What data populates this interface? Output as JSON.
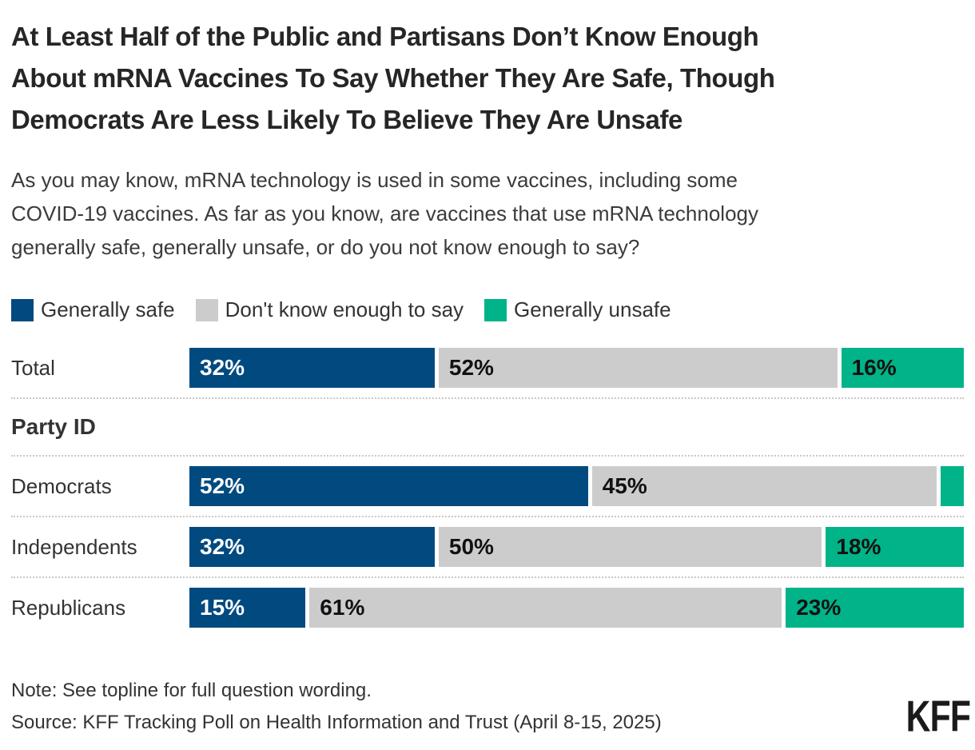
{
  "title_lines": [
    "At Least Half of the Public and Partisans Don’t Know Enough",
    "About mRNA Vaccines To Say Whether They Are Safe, Though",
    "Democrats Are Less Likely To Believe They Are Unsafe"
  ],
  "subtitle_lines": [
    "As you may know, mRNA technology is used in some vaccines, including some",
    "COVID-19 vaccines. As far as you know, are vaccines that use mRNA technology",
    "generally safe, generally unsafe, or do you not know enough to say?"
  ],
  "legend": {
    "items": [
      {
        "label": "Generally safe",
        "color": "#004a80",
        "value_text_color": "#ffffff"
      },
      {
        "label": "Don't know enough to say",
        "color": "#cccccc",
        "value_text_color": "#111111"
      },
      {
        "label": "Generally unsafe",
        "color": "#00b388",
        "value_text_color": "#111111"
      }
    ]
  },
  "section_header": "Party ID",
  "chart_data": {
    "type": "bar",
    "orientation": "horizontal-stacked",
    "unit": "percent",
    "xlim": [
      0,
      100
    ],
    "categories": [
      "Total",
      "Democrats",
      "Independents",
      "Republicans"
    ],
    "series": [
      {
        "name": "Generally safe",
        "values": [
          32,
          52,
          32,
          15
        ]
      },
      {
        "name": "Don't know enough to say",
        "values": [
          52,
          45,
          50,
          61
        ]
      },
      {
        "name": "Generally unsafe",
        "values": [
          16,
          3,
          18,
          23
        ]
      }
    ],
    "value_labels": [
      [
        "32%",
        "52%",
        "16%"
      ],
      [
        "52%",
        "45%",
        ""
      ],
      [
        "32%",
        "50%",
        "18%"
      ],
      [
        "15%",
        "61%",
        "23%"
      ]
    ],
    "annotation": "Democrats 'Generally unsafe' segment is unlabeled in the image; value ~3 estimated from bar width"
  },
  "footer": {
    "note": "Note: See topline for full question wording.",
    "source": "Source: KFF Tracking Poll on Health Information and Trust (April 8-15, 2025)",
    "logo": "KFF"
  }
}
